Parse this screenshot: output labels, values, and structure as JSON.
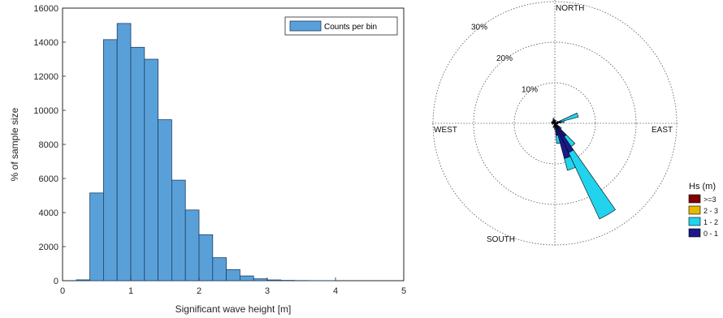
{
  "colors": {
    "bar_fill": "#5aa0d8",
    "bar_stroke": "#1c3f66",
    "hs_ge3": "#800000",
    "hs_2_3": "#e6b800",
    "hs_1_2": "#22d3ee",
    "hs_0_1": "#1a1a8c"
  },
  "chart_data": [
    {
      "type": "bar",
      "title": "",
      "xlabel": "Significant wave height [m]",
      "ylabel": "% of sample size",
      "xlim": [
        0,
        5
      ],
      "ylim": [
        0,
        16000
      ],
      "xticks": [
        "0",
        "1",
        "2",
        "3",
        "4",
        "5"
      ],
      "yticks": [
        "0",
        "2000",
        "4000",
        "6000",
        "8000",
        "10000",
        "12000",
        "14000",
        "16000"
      ],
      "bin_width": 0.2,
      "bin_edges_start": [
        0.2,
        0.4,
        0.6,
        0.8,
        1.0,
        1.2,
        1.4,
        1.6,
        1.8,
        2.0,
        2.2,
        2.4,
        2.6,
        2.8,
        3.0,
        3.2,
        3.4,
        3.6,
        3.8
      ],
      "values": [
        50,
        5150,
        14150,
        15100,
        13700,
        13000,
        9450,
        5900,
        4150,
        2700,
        1350,
        650,
        280,
        110,
        45,
        20,
        10,
        5,
        2
      ],
      "legend": {
        "label": "Counts per bin",
        "position": "top-right"
      },
      "grid": false
    },
    {
      "type": "wind-rose",
      "directions": {
        "north": "NORTH",
        "south": "SOUTH",
        "east": "EAST",
        "west": "WEST"
      },
      "rings": [
        {
          "value": 10,
          "label": "10%"
        },
        {
          "value": 20,
          "label": "20%"
        },
        {
          "value": 30,
          "label": "30%"
        }
      ],
      "ring_max": 30,
      "legend_title": "Hs (m)",
      "legend": [
        {
          "label": ">=3",
          "color_key": "hs_ge3"
        },
        {
          "label": "2 - 3",
          "color_key": "hs_2_3"
        },
        {
          "label": "1 - 2",
          "color_key": "hs_1_2"
        },
        {
          "label": "0 - 1",
          "color_key": "hs_0_1"
        }
      ],
      "bin_width_deg": 10,
      "sectors": [
        {
          "direction_deg": 335,
          "v0_1": 0.5,
          "v1_2": 0.5
        },
        {
          "direction_deg": 345,
          "v0_1": 0.5,
          "v1_2": 0.8
        },
        {
          "direction_deg": 355,
          "v0_1": 0.4,
          "v1_2": 0.4
        },
        {
          "direction_deg": 20,
          "v0_1": 0.5,
          "v1_2": 0.3
        },
        {
          "direction_deg": 60,
          "v0_1": 0.6,
          "v1_2": 0.3
        },
        {
          "direction_deg": 70,
          "v0_1": 1.5,
          "v1_2": 4.5
        },
        {
          "direction_deg": 80,
          "v0_1": 1.5,
          "v1_2": 0.8
        },
        {
          "direction_deg": 100,
          "v0_1": 0.6,
          "v1_2": 0.2
        },
        {
          "direction_deg": 130,
          "v0_1": 1.5,
          "v1_2": 0.5
        },
        {
          "direction_deg": 140,
          "v0_1": 4.0,
          "v1_2": 3.0
        },
        {
          "direction_deg": 150,
          "v0_1": 8.0,
          "v1_2": 18.0
        },
        {
          "direction_deg": 160,
          "v0_1": 9.0,
          "v1_2": 3.0
        },
        {
          "direction_deg": 170,
          "v0_1": 3.0,
          "v1_2": 2.0
        },
        {
          "direction_deg": 180,
          "v0_1": 1.0,
          "v1_2": 0.5
        },
        {
          "direction_deg": 200,
          "v0_1": 0.8,
          "v1_2": 0.3
        },
        {
          "direction_deg": 250,
          "v0_1": 0.5,
          "v1_2": 0.2
        },
        {
          "direction_deg": 280,
          "v0_1": 0.7,
          "v1_2": 0.2
        },
        {
          "direction_deg": 300,
          "v0_1": 0.6,
          "v1_2": 0.2
        },
        {
          "direction_deg": 320,
          "v0_1": 0.5,
          "v1_2": 0.3
        }
      ]
    }
  ]
}
